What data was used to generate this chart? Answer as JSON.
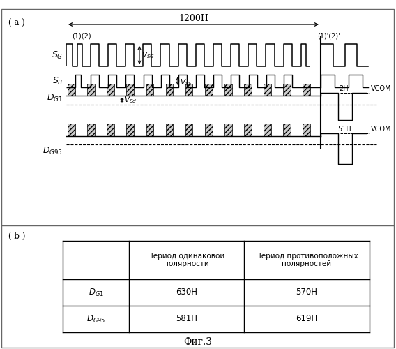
{
  "fig_label_a": "( a )",
  "fig_label_b": "( b )",
  "fig_caption": "Фиг.3",
  "width_label": "1200H",
  "SG_label": "$S_G$",
  "SB_label": "$S_B$",
  "DG1_label": "$D_{G1}$",
  "DG95_label": "$D_{G95}$",
  "VSG_label": "$V_{SG}$",
  "VSS_label": "$V_{SS}$",
  "VSd_label": "$V_{Sd}$",
  "pos12_left": "(1)(2)",
  "pos12_right": "(1)'(2)'",
  "label_2H": "2H",
  "label_51H": "51H",
  "VCOM": "VCOM",
  "col_header1": "Период одинаковой\nполярности",
  "col_header2": "Период противоположных\nполярностей",
  "row1_label": "$D_{G1}$",
  "row2_label": "$D_{G95}$",
  "r1c1": "630H",
  "r1c2": "570H",
  "r2c1": "581H",
  "r2c2": "619H"
}
